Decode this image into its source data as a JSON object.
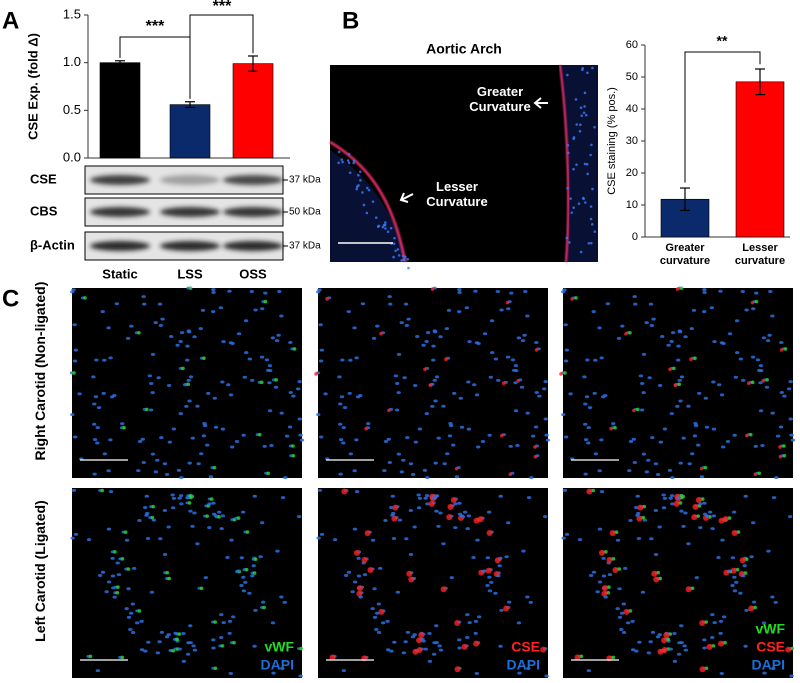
{
  "panel_labels": [
    "A",
    "B",
    "C"
  ],
  "chart_data": [
    {
      "type": "bar",
      "y_label": "CSE Exp. (fold Δ)",
      "categories": [
        "Static",
        "LSS",
        "OSS"
      ],
      "values": [
        1.0,
        0.56,
        0.99
      ],
      "errors": [
        0.02,
        0.03,
        0.08
      ],
      "colors": [
        "#000000",
        "#0b2a6b",
        "#ff0000"
      ],
      "ylim": [
        0,
        1.5
      ],
      "yticks": [
        {
          "value": 0,
          "label": "0.0"
        },
        0.5,
        {
          "value": 1,
          "label": "1.0"
        },
        1.5
      ],
      "significance": [
        "***",
        "***"
      ]
    },
    {
      "type": "bar",
      "y_label": "CSE staining (% pos.)",
      "categories": [
        "Greater curvature",
        "Lesser curvature"
      ],
      "values": [
        11.8,
        48.5
      ],
      "errors": [
        3.5,
        4.0
      ],
      "colors": [
        "#0b2a6b",
        "#ff0000"
      ],
      "ylim": [
        0,
        60
      ],
      "yticks": [
        0,
        10,
        20,
        30,
        40,
        50,
        60
      ],
      "significance": [
        "**"
      ]
    }
  ],
  "blots": [
    {
      "label": "CSE",
      "marker": "37 kDa"
    },
    {
      "label": "CBS",
      "marker": "50 kDa"
    },
    {
      "label": "β-Actin",
      "marker": "37 kDa"
    }
  ],
  "aortic_image": {
    "title": "Aortic Arch",
    "labels": [
      "Greater Curvature",
      "Lesser Curvature"
    ]
  },
  "carotid": {
    "rows": [
      "Right Carotid (Non-ligated)",
      "Left Carotid (Ligated)"
    ],
    "stains": [
      "vWF",
      "CSE",
      "DAPI"
    ],
    "stain_colors": [
      "#22dd22",
      "#ff2222",
      "#1a6fd8"
    ]
  }
}
